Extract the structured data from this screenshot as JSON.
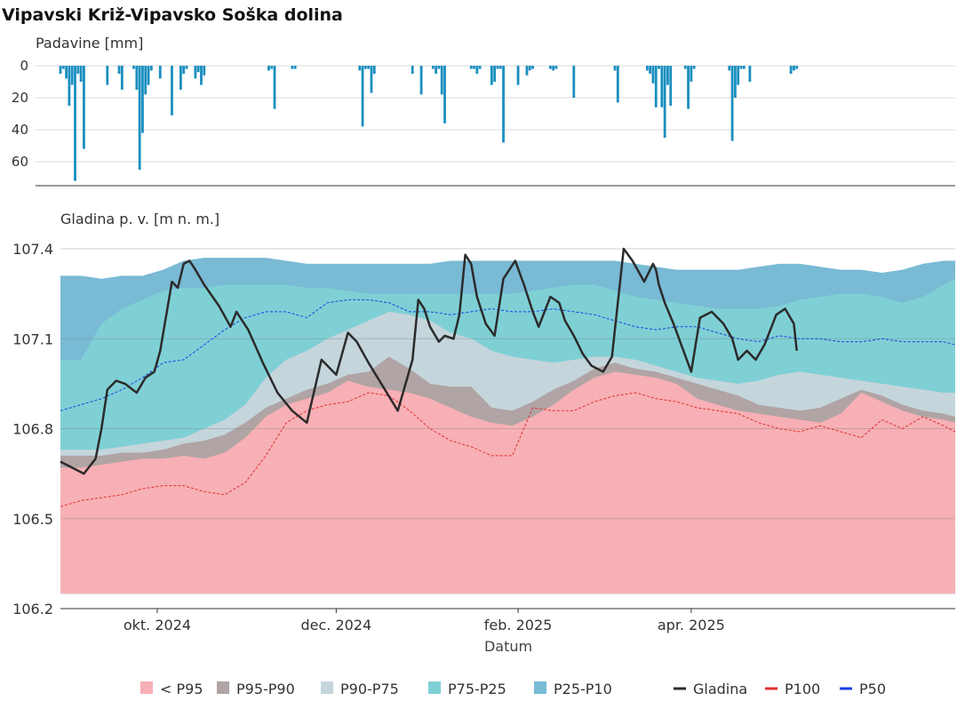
{
  "title": "Vipavski Križ-Vipavsko Soška dolina",
  "chart_data": [
    {
      "type": "bar",
      "ylabel": "Padavine [mm]",
      "ylim": [
        0,
        75
      ],
      "y_ticks": [
        "0",
        "20",
        "40",
        "60"
      ],
      "y_tick_values": [
        0,
        20,
        40,
        60
      ],
      "inverted_y": true,
      "grid": true,
      "color": "#1a8fbf",
      "x": [
        "2024-08-29",
        "2024-08-30",
        "2024-08-31",
        "2024-09-01",
        "2024-09-02",
        "2024-09-03",
        "2024-09-04",
        "2024-09-05",
        "2024-09-06",
        "2024-09-14",
        "2024-09-18",
        "2024-09-19",
        "2024-09-23",
        "2024-09-24",
        "2024-09-25",
        "2024-09-26",
        "2024-09-27",
        "2024-09-28",
        "2024-09-29",
        "2024-10-02",
        "2024-10-06",
        "2024-10-09",
        "2024-10-10",
        "2024-10-11",
        "2024-10-14",
        "2024-10-15",
        "2024-10-16",
        "2024-10-17",
        "2024-11-08",
        "2024-11-09",
        "2024-11-10",
        "2024-11-16",
        "2024-11-17",
        "2024-12-09",
        "2024-12-10",
        "2024-12-11",
        "2024-12-12",
        "2024-12-13",
        "2024-12-14",
        "2024-12-27",
        "2024-12-30",
        "2025-01-03",
        "2025-01-04",
        "2025-01-05",
        "2025-01-06",
        "2025-01-07",
        "2025-01-16",
        "2025-01-17",
        "2025-01-18",
        "2025-01-19",
        "2025-01-23",
        "2025-01-24",
        "2025-01-25",
        "2025-01-26",
        "2025-01-27",
        "2025-02-01",
        "2025-02-04",
        "2025-02-05",
        "2025-02-06",
        "2025-02-12",
        "2025-02-13",
        "2025-02-14",
        "2025-02-20",
        "2025-03-06",
        "2025-03-07",
        "2025-03-17",
        "2025-03-18",
        "2025-03-19",
        "2025-03-20",
        "2025-03-21",
        "2025-03-22",
        "2025-03-23",
        "2025-03-24",
        "2025-03-25",
        "2025-03-30",
        "2025-03-31",
        "2025-04-01",
        "2025-04-02",
        "2025-04-14",
        "2025-04-15",
        "2025-04-16",
        "2025-04-17",
        "2025-04-18",
        "2025-04-19",
        "2025-04-21",
        "2025-05-05",
        "2025-05-06",
        "2025-05-07"
      ],
      "values": [
        5,
        2,
        8,
        25,
        12,
        72,
        5,
        10,
        52,
        12,
        5,
        15,
        2,
        15,
        65,
        42,
        18,
        12,
        3,
        8,
        31,
        15,
        5,
        2,
        8,
        4,
        12,
        6,
        3,
        2,
        27,
        2,
        2,
        3,
        38,
        2,
        2,
        17,
        5,
        5,
        18,
        2,
        5,
        2,
        18,
        36,
        2,
        2,
        5,
        2,
        12,
        10,
        2,
        2,
        48,
        12,
        6,
        3,
        2,
        2,
        3,
        2,
        20,
        3,
        23,
        3,
        5,
        11,
        26,
        2,
        26,
        45,
        12,
        25,
        2,
        27,
        10,
        2,
        3,
        47,
        20,
        12,
        2,
        2,
        10,
        5,
        3,
        2
      ]
    },
    {
      "type": "area",
      "ylabel": "Gladina p. v. [m n. m.]",
      "xlabel": "Datum",
      "ylim": [
        106.2,
        107.4
      ],
      "y_ticks": [
        "106.2",
        "106.5",
        "106.8",
        "107.1",
        "107.4"
      ],
      "y_tick_values": [
        106.2,
        106.5,
        106.8,
        107.1,
        107.4
      ],
      "x_range": [
        "2024-08-29",
        "2025-06-30"
      ],
      "x_ticks": [
        "okt. 2024",
        "dec. 2024",
        "feb. 2025",
        "apr. 2025"
      ],
      "x_tick_values": [
        "2024-10-01",
        "2024-12-01",
        "2025-02-01",
        "2025-04-01"
      ],
      "grid": true,
      "band_floor": 106.25,
      "band_x": [
        "2024-08-29",
        "2024-09-05",
        "2024-09-12",
        "2024-09-19",
        "2024-09-26",
        "2024-10-03",
        "2024-10-10",
        "2024-10-17",
        "2024-10-24",
        "2024-10-31",
        "2024-11-07",
        "2024-11-14",
        "2024-11-21",
        "2024-11-28",
        "2024-12-05",
        "2024-12-12",
        "2024-12-19",
        "2024-12-26",
        "2025-01-02",
        "2025-01-09",
        "2025-01-16",
        "2025-01-23",
        "2025-01-30",
        "2025-02-06",
        "2025-02-13",
        "2025-02-20",
        "2025-02-27",
        "2025-03-06",
        "2025-03-13",
        "2025-03-20",
        "2025-03-27",
        "2025-04-03",
        "2025-04-10",
        "2025-04-17",
        "2025-04-24",
        "2025-05-01",
        "2025-05-08",
        "2025-05-15",
        "2025-05-22",
        "2025-05-29",
        "2025-06-05",
        "2025-06-12",
        "2025-06-19",
        "2025-06-26",
        "2025-06-30"
      ],
      "bands": [
        {
          "name": "< P95",
          "color": "#f7b0b5",
          "upper": [
            106.67,
            106.67,
            106.68,
            106.69,
            106.7,
            106.7,
            106.71,
            106.7,
            106.72,
            106.77,
            106.84,
            106.88,
            106.9,
            106.92,
            106.96,
            106.94,
            106.93,
            106.92,
            106.9,
            106.87,
            106.84,
            106.82,
            106.81,
            106.84,
            106.88,
            106.93,
            106.97,
            106.99,
            106.98,
            106.97,
            106.95,
            106.9,
            106.88,
            106.86,
            106.85,
            106.84,
            106.83,
            106.82,
            106.85,
            106.92,
            106.89,
            106.86,
            106.84,
            106.83,
            106.82
          ]
        },
        {
          "name": "P95-P90",
          "color": "#b0a4a4",
          "upper": [
            106.71,
            106.71,
            106.71,
            106.72,
            106.72,
            106.73,
            106.75,
            106.76,
            106.78,
            106.82,
            106.87,
            106.9,
            106.93,
            106.95,
            106.98,
            106.99,
            107.04,
            107.0,
            106.95,
            106.94,
            106.94,
            106.87,
            106.86,
            106.89,
            106.93,
            106.96,
            107.0,
            107.02,
            107.0,
            106.99,
            106.97,
            106.95,
            106.93,
            106.91,
            106.88,
            106.87,
            106.86,
            106.87,
            106.9,
            106.93,
            106.91,
            106.88,
            106.86,
            106.85,
            106.84
          ]
        },
        {
          "name": "P90-P75",
          "color": "#c5d5dc",
          "upper": [
            106.73,
            106.73,
            106.73,
            106.74,
            106.75,
            106.76,
            106.77,
            106.8,
            106.83,
            106.88,
            106.97,
            107.03,
            107.06,
            107.1,
            107.13,
            107.16,
            107.19,
            107.18,
            107.16,
            107.12,
            107.1,
            107.06,
            107.04,
            107.03,
            107.02,
            107.03,
            107.04,
            107.04,
            107.03,
            107.01,
            106.99,
            106.97,
            106.96,
            106.95,
            106.96,
            106.98,
            106.99,
            106.98,
            106.97,
            106.96,
            106.95,
            106.94,
            106.93,
            106.92,
            106.92
          ]
        },
        {
          "name": "P75-P25",
          "color": "#7fd0d5",
          "upper": [
            107.03,
            107.03,
            107.15,
            107.2,
            107.23,
            107.26,
            107.27,
            107.27,
            107.28,
            107.28,
            107.28,
            107.28,
            107.27,
            107.27,
            107.26,
            107.25,
            107.25,
            107.25,
            107.25,
            107.25,
            107.25,
            107.25,
            107.25,
            107.26,
            107.27,
            107.28,
            107.28,
            107.26,
            107.24,
            107.23,
            107.22,
            107.21,
            107.2,
            107.2,
            107.2,
            107.21,
            107.23,
            107.24,
            107.25,
            107.25,
            107.24,
            107.22,
            107.24,
            107.28,
            107.3
          ]
        },
        {
          "name": "P25-P10",
          "color": "#79bad5",
          "upper": [
            107.31,
            107.31,
            107.3,
            107.31,
            107.31,
            107.33,
            107.36,
            107.37,
            107.37,
            107.37,
            107.37,
            107.36,
            107.35,
            107.35,
            107.35,
            107.35,
            107.35,
            107.35,
            107.35,
            107.36,
            107.36,
            107.36,
            107.36,
            107.36,
            107.36,
            107.36,
            107.36,
            107.36,
            107.35,
            107.34,
            107.33,
            107.33,
            107.33,
            107.33,
            107.34,
            107.35,
            107.35,
            107.34,
            107.33,
            107.33,
            107.32,
            107.33,
            107.35,
            107.36,
            107.36
          ]
        }
      ],
      "lines": [
        {
          "name": "P100",
          "color": "#e03030",
          "dash": true,
          "x": [
            "2024-08-29",
            "2024-09-05",
            "2024-09-12",
            "2024-09-19",
            "2024-09-26",
            "2024-10-03",
            "2024-10-10",
            "2024-10-17",
            "2024-10-24",
            "2024-10-31",
            "2024-11-07",
            "2024-11-14",
            "2024-11-21",
            "2024-11-28",
            "2024-12-05",
            "2024-12-12",
            "2024-12-19",
            "2024-12-26",
            "2025-01-02",
            "2025-01-09",
            "2025-01-16",
            "2025-01-23",
            "2025-01-30",
            "2025-02-06",
            "2025-02-13",
            "2025-02-20",
            "2025-02-27",
            "2025-03-06",
            "2025-03-13",
            "2025-03-20",
            "2025-03-27",
            "2025-04-03",
            "2025-04-10",
            "2025-04-17",
            "2025-04-24",
            "2025-05-01",
            "2025-05-08",
            "2025-05-15",
            "2025-05-22",
            "2025-05-29",
            "2025-06-05",
            "2025-06-12",
            "2025-06-19",
            "2025-06-26",
            "2025-06-30"
          ],
          "values": [
            106.54,
            106.56,
            106.57,
            106.58,
            106.6,
            106.61,
            106.61,
            106.59,
            106.58,
            106.62,
            106.71,
            106.82,
            106.86,
            106.88,
            106.89,
            106.92,
            106.91,
            106.86,
            106.8,
            106.76,
            106.74,
            106.71,
            106.71,
            106.87,
            106.86,
            106.86,
            106.89,
            106.91,
            106.92,
            106.9,
            106.89,
            106.87,
            106.86,
            106.85,
            106.82,
            106.8,
            106.79,
            106.81,
            106.79,
            106.77,
            106.83,
            106.8,
            106.84,
            106.81,
            106.79
          ]
        },
        {
          "name": "P50",
          "color": "#1a3fe0",
          "dash": true,
          "x": [
            "2024-08-29",
            "2024-09-05",
            "2024-09-12",
            "2024-09-19",
            "2024-09-26",
            "2024-10-03",
            "2024-10-10",
            "2024-10-17",
            "2024-10-24",
            "2024-10-31",
            "2024-11-07",
            "2024-11-14",
            "2024-11-21",
            "2024-11-28",
            "2024-12-05",
            "2024-12-12",
            "2024-12-19",
            "2024-12-26",
            "2025-01-02",
            "2025-01-09",
            "2025-01-16",
            "2025-01-23",
            "2025-01-30",
            "2025-02-06",
            "2025-02-13",
            "2025-02-20",
            "2025-02-27",
            "2025-03-06",
            "2025-03-13",
            "2025-03-20",
            "2025-03-27",
            "2025-04-03",
            "2025-04-10",
            "2025-04-17",
            "2025-04-24",
            "2025-05-01",
            "2025-05-08",
            "2025-05-15",
            "2025-05-22",
            "2025-05-29",
            "2025-06-05",
            "2025-06-12",
            "2025-06-19",
            "2025-06-26",
            "2025-06-30"
          ],
          "values": [
            106.86,
            106.88,
            106.9,
            106.93,
            106.97,
            107.02,
            107.03,
            107.08,
            107.13,
            107.17,
            107.19,
            107.19,
            107.17,
            107.22,
            107.23,
            107.23,
            107.22,
            107.19,
            107.19,
            107.18,
            107.19,
            107.2,
            107.19,
            107.19,
            107.2,
            107.19,
            107.18,
            107.16,
            107.14,
            107.13,
            107.14,
            107.14,
            107.12,
            107.1,
            107.09,
            107.11,
            107.1,
            107.1,
            107.09,
            107.09,
            107.1,
            107.09,
            107.09,
            107.09,
            107.08
          ]
        },
        {
          "name": "Gladina",
          "color": "#2b2b2b",
          "dash": false,
          "x": [
            "2024-08-29",
            "2024-09-02",
            "2024-09-06",
            "2024-09-10",
            "2024-09-12",
            "2024-09-14",
            "2024-09-17",
            "2024-09-20",
            "2024-09-24",
            "2024-09-27",
            "2024-09-30",
            "2024-10-02",
            "2024-10-06",
            "2024-10-08",
            "2024-10-10",
            "2024-10-12",
            "2024-10-14",
            "2024-10-17",
            "2024-10-22",
            "2024-10-26",
            "2024-10-28",
            "2024-11-01",
            "2024-11-06",
            "2024-11-11",
            "2024-11-16",
            "2024-11-21",
            "2024-11-26",
            "2024-12-01",
            "2024-12-05",
            "2024-12-08",
            "2024-12-12",
            "2024-12-17",
            "2024-12-22",
            "2024-12-27",
            "2024-12-29",
            "2024-12-31",
            "2025-01-02",
            "2025-01-05",
            "2025-01-07",
            "2025-01-10",
            "2025-01-12",
            "2025-01-14",
            "2025-01-16",
            "2025-01-18",
            "2025-01-21",
            "2025-01-24",
            "2025-01-27",
            "2025-01-31",
            "2025-02-03",
            "2025-02-06",
            "2025-02-08",
            "2025-02-12",
            "2025-02-15",
            "2025-02-17",
            "2025-02-20",
            "2025-02-23",
            "2025-02-26",
            "2025-03-02",
            "2025-03-05",
            "2025-03-09",
            "2025-03-12",
            "2025-03-16",
            "2025-03-19",
            "2025-03-20",
            "2025-03-21",
            "2025-03-23",
            "2025-03-26",
            "2025-03-29",
            "2025-04-01",
            "2025-04-04",
            "2025-04-08",
            "2025-04-12",
            "2025-04-15",
            "2025-04-17",
            "2025-04-19",
            "2025-04-20",
            "2025-04-23",
            "2025-04-26",
            "2025-04-30",
            "2025-05-03",
            "2025-05-06",
            "2025-05-07"
          ],
          "values": [
            106.69,
            106.67,
            106.65,
            106.7,
            106.8,
            106.93,
            106.96,
            106.95,
            106.92,
            106.97,
            106.99,
            107.06,
            107.29,
            107.27,
            107.35,
            107.36,
            107.33,
            107.28,
            107.21,
            107.14,
            107.19,
            107.13,
            107.02,
            106.92,
            106.86,
            106.82,
            107.03,
            106.98,
            107.12,
            107.09,
            107.02,
            106.94,
            106.86,
            107.03,
            107.23,
            107.2,
            107.14,
            107.09,
            107.11,
            107.1,
            107.18,
            107.38,
            107.35,
            107.24,
            107.15,
            107.11,
            107.3,
            107.36,
            107.28,
            107.19,
            107.14,
            107.24,
            107.22,
            107.16,
            107.11,
            107.05,
            107.01,
            106.99,
            107.04,
            107.4,
            107.36,
            107.29,
            107.35,
            107.33,
            107.28,
            107.22,
            107.15,
            107.07,
            106.99,
            107.17,
            107.19,
            107.15,
            107.1,
            107.03,
            107.05,
            107.06,
            107.03,
            107.08,
            107.18,
            107.2,
            107.15,
            107.06
          ]
        }
      ]
    }
  ],
  "legend": {
    "placement": "bottom",
    "items": [
      {
        "label": "< P95",
        "kind": "box",
        "color": "#f7b0b5"
      },
      {
        "label": "P95-P90",
        "kind": "box",
        "color": "#b0a4a4"
      },
      {
        "label": "P90-P75",
        "kind": "box",
        "color": "#c5d5dc"
      },
      {
        "label": "P75-P25",
        "kind": "box",
        "color": "#7fd0d5"
      },
      {
        "label": "P25-P10",
        "kind": "box",
        "color": "#79bad5"
      },
      {
        "label": "Gladina",
        "kind": "line",
        "color": "#2b2b2b"
      },
      {
        "label": "P100",
        "kind": "line",
        "color": "#e03030"
      },
      {
        "label": "P50",
        "kind": "line",
        "color": "#1a3fe0"
      }
    ]
  }
}
